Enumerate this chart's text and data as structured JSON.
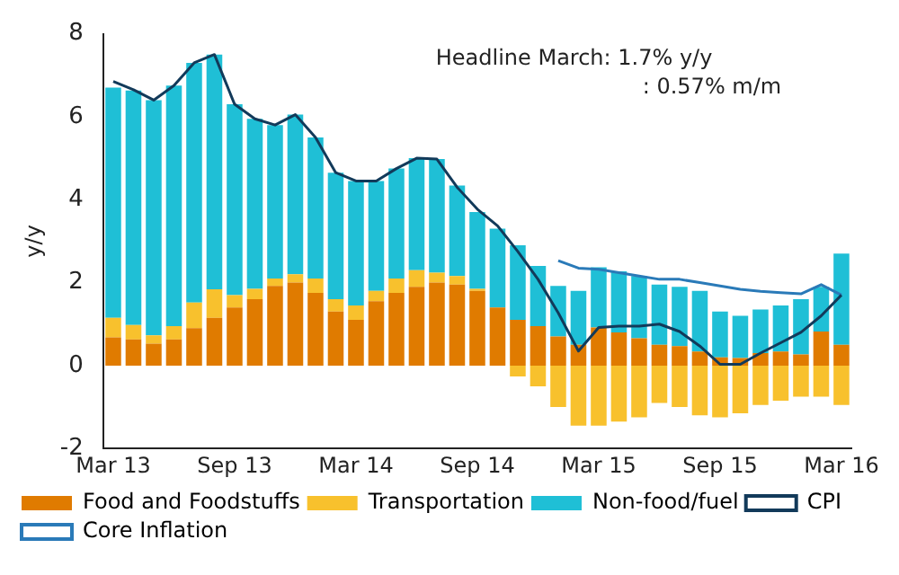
{
  "chart_data": {
    "type": "bar",
    "stacked": true,
    "ylabel": "y/y",
    "categories": [
      "Mar 13",
      null,
      null,
      null,
      null,
      null,
      "Sep 13",
      null,
      null,
      null,
      null,
      null,
      "Mar 14",
      null,
      null,
      null,
      null,
      null,
      "Sep 14",
      null,
      null,
      null,
      null,
      null,
      "Mar 15",
      null,
      null,
      null,
      null,
      null,
      "Sep 15",
      null,
      null,
      null,
      null,
      null,
      "Mar 16"
    ],
    "series": [
      {
        "name": "Food and Foodstuffs",
        "color": "#e07b00",
        "values": [
          0.68,
          0.63,
          0.53,
          0.63,
          0.9,
          1.15,
          1.4,
          1.6,
          1.92,
          2.0,
          1.75,
          1.3,
          1.1,
          1.55,
          1.75,
          1.9,
          2.0,
          1.95,
          1.8,
          1.4,
          1.1,
          0.95,
          0.7,
          0.5,
          0.92,
          0.8,
          0.66,
          0.5,
          0.47,
          0.34,
          0.2,
          0.18,
          0.3,
          0.34,
          0.27,
          0.82,
          0.5
        ]
      },
      {
        "name": "Transportation",
        "color": "#f8c12d",
        "values": [
          0.47,
          0.35,
          0.2,
          0.32,
          0.62,
          0.69,
          0.3,
          0.25,
          0.18,
          0.2,
          0.35,
          0.3,
          0.35,
          0.25,
          0.35,
          0.4,
          0.24,
          0.21,
          0.05,
          0,
          -0.26,
          -0.5,
          -1.0,
          -1.45,
          -1.45,
          -1.35,
          -1.25,
          -0.9,
          -1.0,
          -1.2,
          -1.25,
          -1.15,
          -0.95,
          -0.85,
          -0.75,
          -0.75,
          -0.95
        ]
      },
      {
        "name": "Non-food/fuel",
        "color": "#1fbfd6",
        "values": [
          5.55,
          5.65,
          5.67,
          5.8,
          5.78,
          5.66,
          4.6,
          4.1,
          3.7,
          3.85,
          3.4,
          3.05,
          3.0,
          2.65,
          2.65,
          2.7,
          2.74,
          2.18,
          1.85,
          1.9,
          1.8,
          1.45,
          1.22,
          1.3,
          1.45,
          1.47,
          1.5,
          1.45,
          1.43,
          1.46,
          1.1,
          1.02,
          1.05,
          1.11,
          1.33,
          1.08,
          2.2
        ]
      },
      {
        "name": "CPI",
        "type": "line",
        "color": "#123a5a",
        "values": [
          6.85,
          6.65,
          6.4,
          6.75,
          7.3,
          7.5,
          6.3,
          5.95,
          5.8,
          6.05,
          5.5,
          4.65,
          4.45,
          4.45,
          4.75,
          5.0,
          4.98,
          4.3,
          3.77,
          3.37,
          2.75,
          2.08,
          1.27,
          0.35,
          0.92,
          0.95,
          0.95,
          1.0,
          0.82,
          0.47,
          0.03,
          0.03,
          0.3,
          0.55,
          0.8,
          1.2,
          1.7
        ]
      },
      {
        "name": "Core Inflation",
        "type": "line",
        "color": "#2a7ab8",
        "values": [
          null,
          null,
          null,
          null,
          null,
          null,
          null,
          null,
          null,
          null,
          null,
          null,
          null,
          null,
          null,
          null,
          null,
          null,
          null,
          null,
          null,
          null,
          2.53,
          2.35,
          2.32,
          2.24,
          2.16,
          2.08,
          2.08,
          2.0,
          1.92,
          1.84,
          1.79,
          1.76,
          1.73,
          1.95,
          1.7
        ]
      }
    ],
    "ylim": [
      -2,
      8
    ],
    "yticks": [
      -2,
      0,
      2,
      4,
      6,
      8
    ],
    "grid": false,
    "legend": "bottom",
    "marker": "none",
    "annotations": [
      "Headline March: 1.7% y/y",
      ": 0.57% m/m"
    ]
  }
}
